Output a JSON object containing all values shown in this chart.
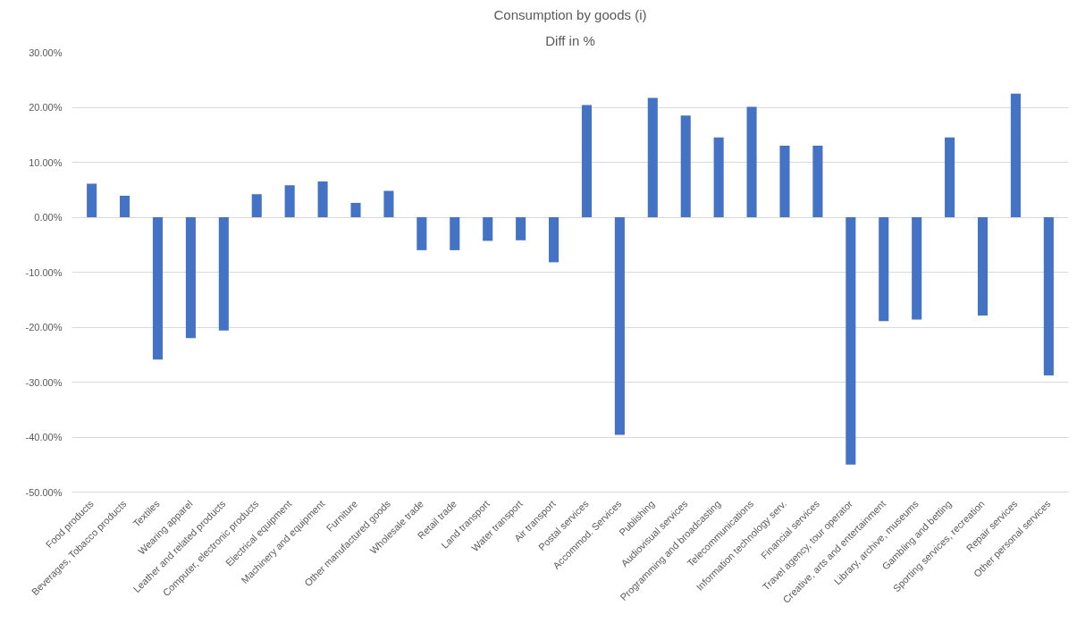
{
  "chart_data": {
    "type": "bar",
    "title": "Consumption by goods (i)",
    "subtitle": "Diff in %",
    "categories": [
      "Food products",
      "Beverages, Tobacco products",
      "Textiles",
      "Wearing apparel",
      "Leather and related products",
      "Computer, electronic products",
      "Electrical equipment",
      "Machinery and equipment",
      "Furniture",
      "Other manufactured goods",
      "Wholesale trade",
      "Retail trade",
      "Land transport",
      "Water transport",
      "Air transport",
      "Postal services",
      "Accommod. Services",
      "Publishing",
      "Audiovisual services",
      "Programming and broadcasting",
      "Telecommunications",
      "Information technology serv.",
      "Financial services",
      "Travel agency, tour operator",
      "Creative, arts and entertainment",
      "Library, archive, museums",
      "Gambling and betting",
      "Sporting services, recreation",
      "Repair services",
      "Other personal services"
    ],
    "values": [
      6.1,
      3.9,
      -25.9,
      -22.0,
      -20.6,
      4.2,
      5.8,
      6.5,
      2.6,
      4.8,
      -6.0,
      -6.0,
      -4.3,
      -4.2,
      -8.2,
      20.4,
      -39.6,
      21.7,
      18.5,
      14.5,
      20.1,
      13.0,
      13.0,
      -45.0,
      -18.9,
      -18.6,
      14.5,
      -17.9,
      22.5,
      -28.8
    ],
    "color": "#4472c4",
    "ylim": [
      -50,
      30
    ],
    "yticks": [
      {
        "value": -50,
        "label": "-50.00%"
      },
      {
        "value": -40,
        "label": "-40.00%"
      },
      {
        "value": -30,
        "label": "-30.00%"
      },
      {
        "value": -20,
        "label": "-20.00%"
      },
      {
        "value": -10,
        "label": "-10.00%"
      },
      {
        "value": 0,
        "label": "0.00%"
      },
      {
        "value": 10,
        "label": "10.00%"
      },
      {
        "value": 20,
        "label": "20.00%"
      },
      {
        "value": 30,
        "label": "30.00%"
      }
    ],
    "grid": "y"
  }
}
